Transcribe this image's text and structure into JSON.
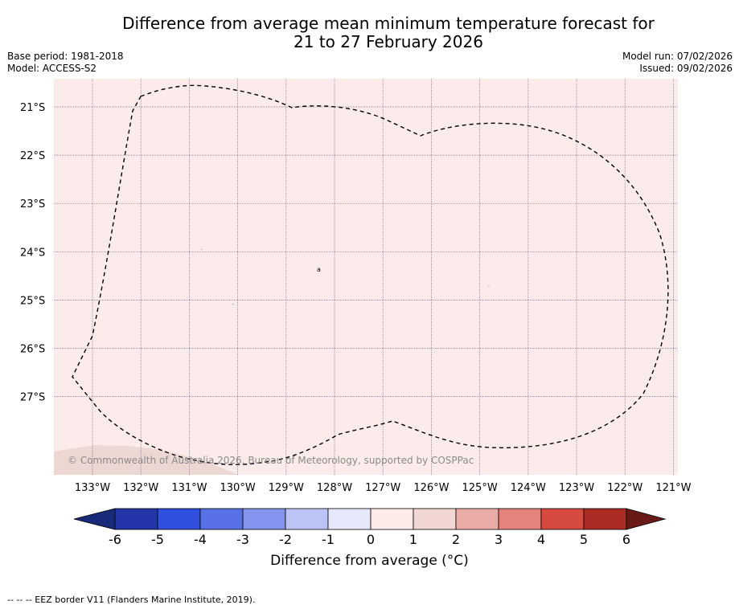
{
  "title": {
    "line1": "Difference from average mean minimum temperature forecast for",
    "line2": "21 to 27 February 2026"
  },
  "meta": {
    "base_period": "Base period: 1981-2018",
    "model": "Model: ACCESS-S2",
    "model_run": "Model run: 07/02/2026",
    "issued": "Issued: 09/02/2026"
  },
  "map": {
    "background_color": "#fbebea",
    "land_color": "#ecd7d3",
    "copyright": "© Commonwealth of Australia 2026, Bureau of Meteorology, supported by COSPPac",
    "lat_labels": [
      "21°S",
      "22°S",
      "23°S",
      "24°S",
      "25°S",
      "26°S",
      "27°S"
    ],
    "lon_labels": [
      "133°W",
      "132°W",
      "131°W",
      "130°W",
      "129°W",
      "128°W",
      "127°W",
      "126°W",
      "125°W",
      "124°W",
      "123°W",
      "122°W",
      "121°W"
    ]
  },
  "colorbar": {
    "label": "Difference from average (°C)",
    "ticks": [
      "-6",
      "-5",
      "-4",
      "-3",
      "-2",
      "-1",
      "0",
      "1",
      "2",
      "3",
      "4",
      "5",
      "6"
    ],
    "colors": [
      "#2335a8",
      "#2f4fdc",
      "#5871e6",
      "#8494ee",
      "#bcc3f5",
      "#e6e9fb",
      "#fcebe9",
      "#f2d6d3",
      "#eaaca6",
      "#e3837b",
      "#d64a41",
      "#a92b24"
    ],
    "under_color": "#182a78",
    "over_color": "#6a1a16"
  },
  "footer": "--  --  -- EEZ border V11 (Flanders Marine Institute, 2019)."
}
